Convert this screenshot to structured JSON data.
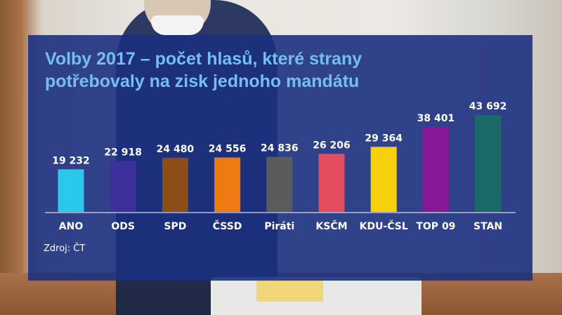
{
  "chart_data": {
    "type": "bar",
    "title_lines": [
      "Volby 2017 – počet hlasů, které strany",
      "potřebovaly na zisk jednoho mandátu"
    ],
    "categories": [
      "ANO",
      "ODS",
      "SPD",
      "ČSSD",
      "Piráti",
      "KSČM",
      "KDU-ČSL",
      "TOP 09",
      "STAN"
    ],
    "values": [
      19232,
      22918,
      24480,
      24556,
      24836,
      26206,
      29364,
      38401,
      43692
    ],
    "value_labels": [
      "19 232",
      "22 918",
      "24 480",
      "24 556",
      "24 836",
      "26 206",
      "29 364",
      "38 401",
      "43 692"
    ],
    "colors": [
      "#2ac8ea",
      "#3d2f9c",
      "#8c4e16",
      "#ee7a14",
      "#5b5b5b",
      "#e24d5f",
      "#f7cf0e",
      "#861a96",
      "#1a6b68"
    ],
    "ylim": [
      0,
      45000
    ],
    "grid": false,
    "source": "Zdroj: ČT"
  }
}
